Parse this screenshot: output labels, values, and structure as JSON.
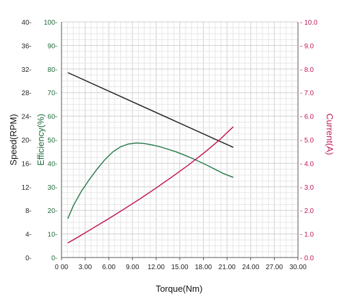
{
  "chart_data": {
    "type": "line",
    "xlabel": "Torque(Nm)",
    "xlim": [
      0,
      30
    ],
    "x_ticks": [
      "0 00",
      "3.00",
      "6.00",
      "9.00",
      "12.00",
      "15.00",
      "18.00",
      "21.00",
      "24.00",
      "27.00",
      "30.00"
    ],
    "grid": true,
    "axes": {
      "speed": {
        "label": "Speed(RPM)",
        "range": [
          0,
          40
        ],
        "ticks": [
          "0-",
          "4-",
          "8-",
          "12-",
          "16-",
          "20-",
          "24-",
          "28-",
          "32-",
          "36-",
          "40-"
        ],
        "color": "#222222"
      },
      "efficiency": {
        "label": "Efficiency(%)",
        "range": [
          0,
          100
        ],
        "ticks": [
          "0-",
          "10-",
          "20-",
          "30-",
          "40-",
          "50-",
          "60-",
          "70-",
          "80-",
          "90-",
          "100-"
        ],
        "color": "#1f6b3a"
      },
      "current": {
        "label": "Current(A)",
        "range": [
          0,
          10
        ],
        "ticks": [
          "- 0.0",
          "- 1.0",
          "- 2.0",
          "- 3.0",
          "- 4.0",
          "- 5.0",
          "- 6.0",
          "- 7.0",
          "- 8.0",
          "- 9.0",
          "- 10.0"
        ],
        "color": "#c2185b"
      }
    },
    "series": [
      {
        "axis": "speed",
        "color": "#222222",
        "x": [
          0.8,
          21.8
        ],
        "y": [
          31.4,
          18.7
        ]
      },
      {
        "axis": "efficiency",
        "color": "#2e7d4f",
        "x": [
          0.8,
          1.5,
          2.5,
          3.5,
          4.5,
          5.5,
          6.5,
          7.5,
          8.5,
          9.5,
          10.5,
          11.5,
          12.5,
          13.5,
          14.5,
          15.5,
          16.5,
          17.5,
          18.5,
          19.5,
          20.5,
          21.8
        ],
        "y": [
          16.5,
          22,
          28,
          33,
          37.5,
          41.5,
          44.8,
          47,
          48.2,
          48.6,
          48.4,
          47.8,
          47,
          46,
          44.9,
          43.6,
          42.2,
          40.7,
          39.1,
          37.4,
          35.7,
          34
        ]
      },
      {
        "axis": "current",
        "color": "#c2185b",
        "x": [
          0.8,
          2,
          4,
          6,
          8,
          10,
          12,
          14,
          16,
          18,
          20,
          21,
          21.8
        ],
        "y": [
          0.62,
          0.85,
          1.25,
          1.65,
          2.07,
          2.5,
          2.95,
          3.42,
          3.9,
          4.42,
          4.98,
          5.3,
          5.55
        ]
      }
    ]
  }
}
